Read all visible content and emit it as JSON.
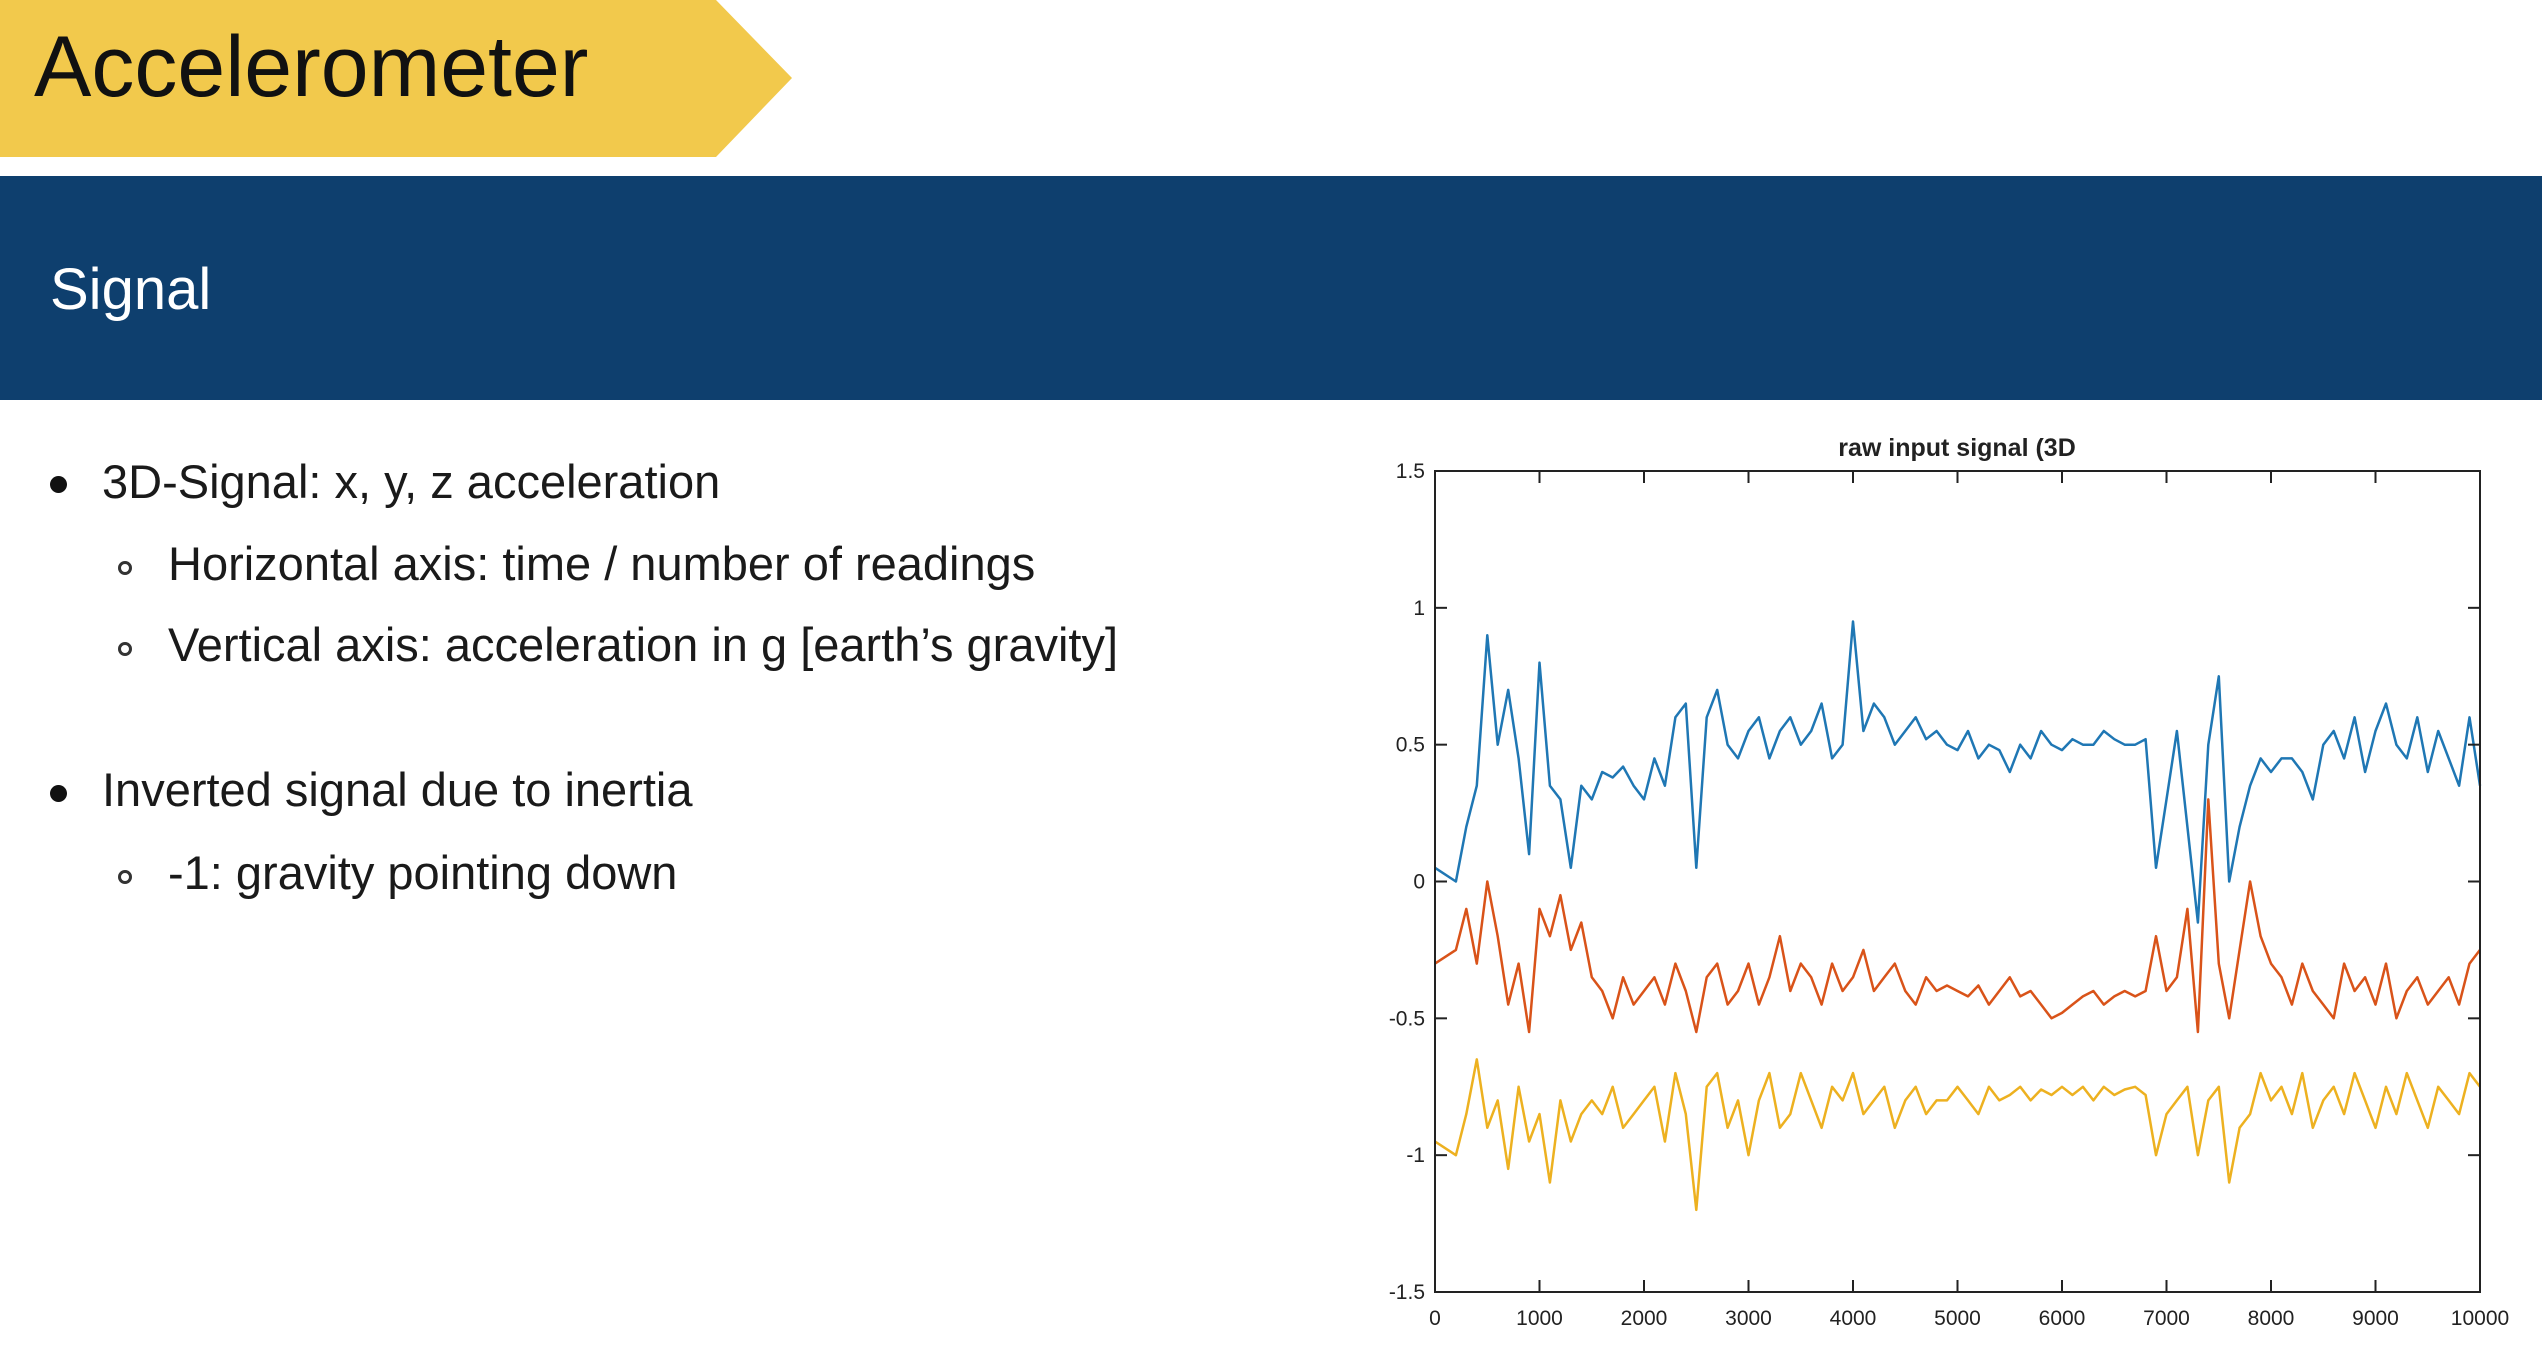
{
  "slide": {
    "title": "Accelerometer",
    "section": "Signal",
    "colors": {
      "title_tab": "#f2c94c",
      "band": "#0e3f6e"
    }
  },
  "bullets": [
    {
      "level": 1,
      "text": "3D-Signal: x, y, z acceleration"
    },
    {
      "level": 2,
      "text": "Horizontal axis: time / number of readings"
    },
    {
      "level": 2,
      "text": "Vertical axis: acceleration in g [earth’s gravity]"
    },
    {
      "level": 1,
      "text": "Inverted signal due to inertia"
    },
    {
      "level": 2,
      "text": "-1: gravity pointing down"
    }
  ],
  "chart_data": {
    "type": "line",
    "title": "raw input signal (3D",
    "xlabel": "",
    "ylabel": "",
    "xlim": [
      0,
      10000
    ],
    "ylim": [
      -1.5,
      1.5
    ],
    "xticks": [
      0,
      1000,
      2000,
      3000,
      4000,
      5000,
      6000,
      7000,
      8000,
      9000,
      10000
    ],
    "xtick_labels": [
      "0",
      "1000",
      "2000",
      "3000",
      "4000",
      "5000",
      "6000",
      "7000",
      "8000",
      "9000",
      "10000"
    ],
    "yticks": [
      1.5,
      1,
      0.5,
      0,
      -0.5,
      -1,
      -1.5
    ],
    "ytick_labels": [
      "1.5",
      "1",
      "0.5",
      "0",
      "-0.5",
      "-1",
      "-1.5"
    ],
    "grid": false,
    "legend": "none",
    "series": [
      {
        "color": "#1f77b4",
        "x": [
          0,
          200,
          300,
          400,
          500,
          600,
          700,
          800,
          900,
          1000,
          1100,
          1200,
          1300,
          1400,
          1500,
          1600,
          1700,
          1800,
          1900,
          2000,
          2100,
          2200,
          2300,
          2400,
          2500,
          2600,
          2700,
          2800,
          2900,
          3000,
          3100,
          3200,
          3300,
          3400,
          3500,
          3600,
          3700,
          3800,
          3900,
          4000,
          4100,
          4200,
          4300,
          4400,
          4500,
          4600,
          4700,
          4800,
          4900,
          5000,
          5100,
          5200,
          5300,
          5400,
          5500,
          5600,
          5700,
          5800,
          5900,
          6000,
          6100,
          6200,
          6300,
          6400,
          6500,
          6600,
          6700,
          6800,
          6900,
          7000,
          7100,
          7200,
          7300,
          7400,
          7500,
          7600,
          7700,
          7800,
          7900,
          8000,
          8100,
          8200,
          8300,
          8400,
          8500,
          8600,
          8700,
          8800,
          8900,
          9000,
          9100,
          9200,
          9300,
          9400,
          9500,
          9600,
          9700,
          9800,
          9900,
          10000
        ],
        "y": [
          0.05,
          0.0,
          0.2,
          0.35,
          0.9,
          0.5,
          0.7,
          0.45,
          0.1,
          0.8,
          0.35,
          0.3,
          0.05,
          0.35,
          0.3,
          0.4,
          0.38,
          0.42,
          0.35,
          0.3,
          0.45,
          0.35,
          0.6,
          0.65,
          0.05,
          0.6,
          0.7,
          0.5,
          0.45,
          0.55,
          0.6,
          0.45,
          0.55,
          0.6,
          0.5,
          0.55,
          0.65,
          0.45,
          0.5,
          0.95,
          0.55,
          0.65,
          0.6,
          0.5,
          0.55,
          0.6,
          0.52,
          0.55,
          0.5,
          0.48,
          0.55,
          0.45,
          0.5,
          0.48,
          0.4,
          0.5,
          0.45,
          0.55,
          0.5,
          0.48,
          0.52,
          0.5,
          0.5,
          0.55,
          0.52,
          0.5,
          0.5,
          0.52,
          0.05,
          0.3,
          0.55,
          0.2,
          -0.15,
          0.5,
          0.75,
          0.0,
          0.2,
          0.35,
          0.45,
          0.4,
          0.45,
          0.45,
          0.4,
          0.3,
          0.5,
          0.55,
          0.45,
          0.6,
          0.4,
          0.55,
          0.65,
          0.5,
          0.45,
          0.6,
          0.4,
          0.55,
          0.45,
          0.35,
          0.6,
          0.35
        ]
      },
      {
        "color": "#d95319",
        "x": [
          0,
          200,
          300,
          400,
          500,
          600,
          700,
          800,
          900,
          1000,
          1100,
          1200,
          1300,
          1400,
          1500,
          1600,
          1700,
          1800,
          1900,
          2000,
          2100,
          2200,
          2300,
          2400,
          2500,
          2600,
          2700,
          2800,
          2900,
          3000,
          3100,
          3200,
          3300,
          3400,
          3500,
          3600,
          3700,
          3800,
          3900,
          4000,
          4100,
          4200,
          4300,
          4400,
          4500,
          4600,
          4700,
          4800,
          4900,
          5000,
          5100,
          5200,
          5300,
          5400,
          5500,
          5600,
          5700,
          5800,
          5900,
          6000,
          6100,
          6200,
          6300,
          6400,
          6500,
          6600,
          6700,
          6800,
          6900,
          7000,
          7100,
          7200,
          7300,
          7400,
          7500,
          7600,
          7700,
          7800,
          7900,
          8000,
          8100,
          8200,
          8300,
          8400,
          8500,
          8600,
          8700,
          8800,
          8900,
          9000,
          9100,
          9200,
          9300,
          9400,
          9500,
          9600,
          9700,
          9800,
          9900,
          10000
        ],
        "y": [
          -0.3,
          -0.25,
          -0.1,
          -0.3,
          0.0,
          -0.2,
          -0.45,
          -0.3,
          -0.55,
          -0.1,
          -0.2,
          -0.05,
          -0.25,
          -0.15,
          -0.35,
          -0.4,
          -0.5,
          -0.35,
          -0.45,
          -0.4,
          -0.35,
          -0.45,
          -0.3,
          -0.4,
          -0.55,
          -0.35,
          -0.3,
          -0.45,
          -0.4,
          -0.3,
          -0.45,
          -0.35,
          -0.2,
          -0.4,
          -0.3,
          -0.35,
          -0.45,
          -0.3,
          -0.4,
          -0.35,
          -0.25,
          -0.4,
          -0.35,
          -0.3,
          -0.4,
          -0.45,
          -0.35,
          -0.4,
          -0.38,
          -0.4,
          -0.42,
          -0.38,
          -0.45,
          -0.4,
          -0.35,
          -0.42,
          -0.4,
          -0.45,
          -0.5,
          -0.48,
          -0.45,
          -0.42,
          -0.4,
          -0.45,
          -0.42,
          -0.4,
          -0.42,
          -0.4,
          -0.2,
          -0.4,
          -0.35,
          -0.1,
          -0.55,
          0.3,
          -0.3,
          -0.5,
          -0.25,
          0.0,
          -0.2,
          -0.3,
          -0.35,
          -0.45,
          -0.3,
          -0.4,
          -0.45,
          -0.5,
          -0.3,
          -0.4,
          -0.35,
          -0.45,
          -0.3,
          -0.5,
          -0.4,
          -0.35,
          -0.45,
          -0.4,
          -0.35,
          -0.45,
          -0.3,
          -0.25
        ]
      },
      {
        "color": "#edb120",
        "x": [
          0,
          200,
          300,
          400,
          500,
          600,
          700,
          800,
          900,
          1000,
          1100,
          1200,
          1300,
          1400,
          1500,
          1600,
          1700,
          1800,
          1900,
          2000,
          2100,
          2200,
          2300,
          2400,
          2500,
          2600,
          2700,
          2800,
          2900,
          3000,
          3100,
          3200,
          3300,
          3400,
          3500,
          3600,
          3700,
          3800,
          3900,
          4000,
          4100,
          4200,
          4300,
          4400,
          4500,
          4600,
          4700,
          4800,
          4900,
          5000,
          5100,
          5200,
          5300,
          5400,
          5500,
          5600,
          5700,
          5800,
          5900,
          6000,
          6100,
          6200,
          6300,
          6400,
          6500,
          6600,
          6700,
          6800,
          6900,
          7000,
          7100,
          7200,
          7300,
          7400,
          7500,
          7600,
          7700,
          7800,
          7900,
          8000,
          8100,
          8200,
          8300,
          8400,
          8500,
          8600,
          8700,
          8800,
          8900,
          9000,
          9100,
          9200,
          9300,
          9400,
          9500,
          9600,
          9700,
          9800,
          9900,
          10000
        ],
        "y": [
          -0.95,
          -1.0,
          -0.85,
          -0.65,
          -0.9,
          -0.8,
          -1.05,
          -0.75,
          -0.95,
          -0.85,
          -1.1,
          -0.8,
          -0.95,
          -0.85,
          -0.8,
          -0.85,
          -0.75,
          -0.9,
          -0.85,
          -0.8,
          -0.75,
          -0.95,
          -0.7,
          -0.85,
          -1.2,
          -0.75,
          -0.7,
          -0.9,
          -0.8,
          -1.0,
          -0.8,
          -0.7,
          -0.9,
          -0.85,
          -0.7,
          -0.8,
          -0.9,
          -0.75,
          -0.8,
          -0.7,
          -0.85,
          -0.8,
          -0.75,
          -0.9,
          -0.8,
          -0.75,
          -0.85,
          -0.8,
          -0.8,
          -0.75,
          -0.8,
          -0.85,
          -0.75,
          -0.8,
          -0.78,
          -0.75,
          -0.8,
          -0.76,
          -0.78,
          -0.75,
          -0.78,
          -0.75,
          -0.8,
          -0.75,
          -0.78,
          -0.76,
          -0.75,
          -0.78,
          -1.0,
          -0.85,
          -0.8,
          -0.75,
          -1.0,
          -0.8,
          -0.75,
          -1.1,
          -0.9,
          -0.85,
          -0.7,
          -0.8,
          -0.75,
          -0.85,
          -0.7,
          -0.9,
          -0.8,
          -0.75,
          -0.85,
          -0.7,
          -0.8,
          -0.9,
          -0.75,
          -0.85,
          -0.7,
          -0.8,
          -0.9,
          -0.75,
          -0.8,
          -0.85,
          -0.7,
          -0.75
        ]
      }
    ]
  }
}
